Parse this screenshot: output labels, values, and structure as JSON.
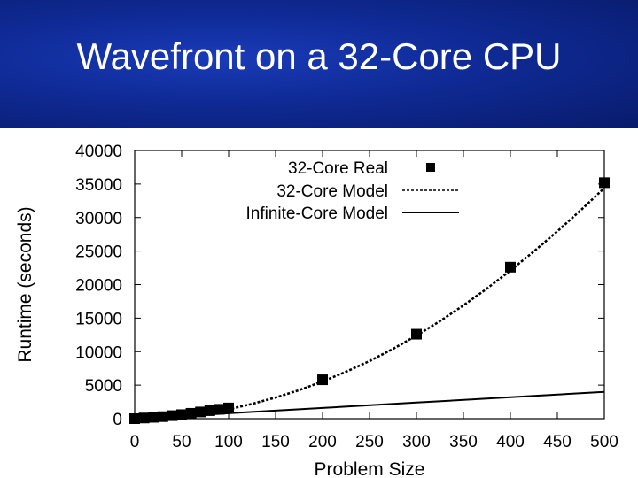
{
  "slide": {
    "title": "Wavefront on a 32-Core CPU",
    "header_color": "#0f2a95"
  },
  "chart_data": {
    "type": "line",
    "title": "",
    "xlabel": "Problem Size",
    "ylabel": "Runtime (seconds)",
    "xlim": [
      0,
      500
    ],
    "ylim": [
      0,
      40000
    ],
    "xticks": [
      0,
      50,
      100,
      150,
      200,
      250,
      300,
      350,
      400,
      450,
      500
    ],
    "yticks": [
      0,
      5000,
      10000,
      15000,
      20000,
      25000,
      30000,
      35000,
      40000
    ],
    "grid": false,
    "legend_position": "top-right",
    "series": [
      {
        "name": "32-Core Real",
        "style": "markers",
        "marker": "square",
        "color": "#000000",
        "x": [
          0,
          10,
          20,
          30,
          40,
          50,
          60,
          70,
          80,
          90,
          100,
          200,
          300,
          400,
          500
        ],
        "y": [
          0,
          100,
          200,
          300,
          450,
          600,
          800,
          1000,
          1200,
          1400,
          1600,
          5800,
          12600,
          22600,
          35200
        ]
      },
      {
        "name": "32-Core Model",
        "style": "dashed",
        "color": "#000000",
        "x": [
          0,
          25,
          50,
          75,
          100,
          125,
          150,
          175,
          200,
          225,
          250,
          275,
          300,
          325,
          350,
          375,
          400,
          425,
          450,
          475,
          500
        ],
        "y": [
          0,
          250,
          560,
          950,
          1400,
          2200,
          3150,
          4250,
          5550,
          7000,
          8600,
          10400,
          12400,
          14550,
          16900,
          19400,
          22100,
          24950,
          27950,
          31100,
          34400
        ]
      },
      {
        "name": "Infinite-Core Model",
        "style": "solid",
        "color": "#000000",
        "x": [
          0,
          100,
          200,
          300,
          400,
          500
        ],
        "y": [
          0,
          800,
          1600,
          2400,
          3200,
          4000
        ]
      }
    ]
  }
}
